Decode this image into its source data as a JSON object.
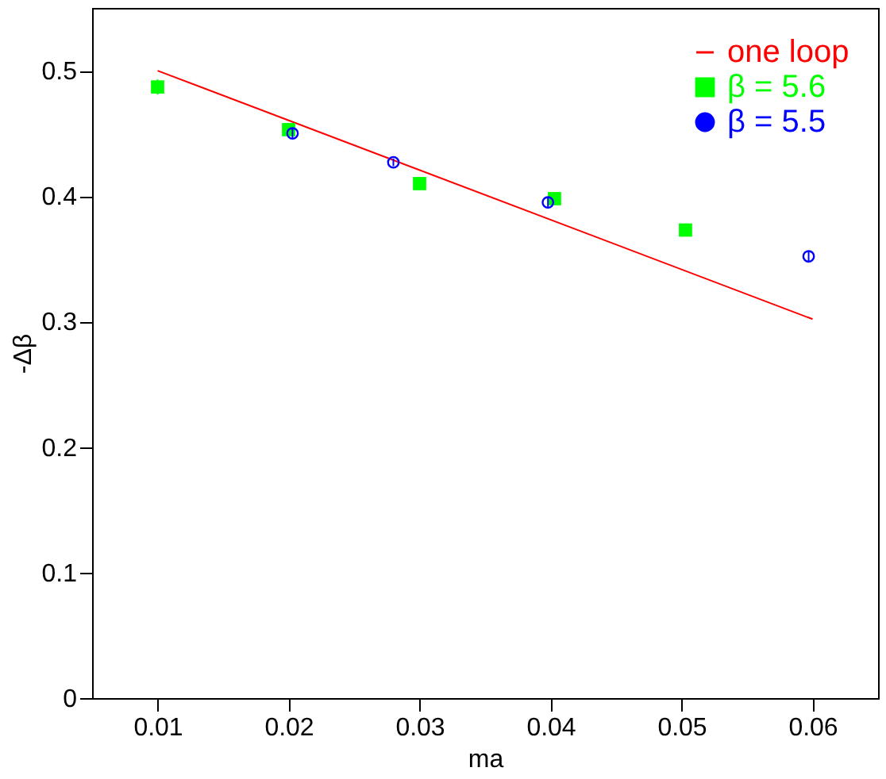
{
  "chart_data": {
    "type": "scatter",
    "xlabel": "ma",
    "ylabel": "-Δβ",
    "xlim": [
      0.005,
      0.065
    ],
    "ylim": [
      0,
      0.55
    ],
    "xticks": [
      0.01,
      0.02,
      0.03,
      0.04,
      0.05,
      0.06
    ],
    "yticks": [
      0,
      0.1,
      0.2,
      0.3,
      0.4,
      0.5
    ],
    "legend": "top right",
    "grid": false,
    "series": [
      {
        "name": "one loop",
        "type": "line",
        "color": "#ff0000",
        "x": [
          0.01,
          0.06
        ],
        "values": [
          0.5,
          0.302
        ]
      },
      {
        "name": "β = 5.6",
        "marker": "square",
        "color": "#00ff00",
        "x": [
          0.01,
          0.02,
          0.03,
          0.0403,
          0.0503
        ],
        "values": [
          0.487,
          0.453,
          0.41,
          0.398,
          0.373
        ],
        "errors": [
          0.006,
          0.004,
          0.003,
          0.004,
          0.003
        ]
      },
      {
        "name": "β = 5.5",
        "marker": "circle",
        "color": "#0000ff",
        "x": [
          0.0203,
          0.028,
          0.0398,
          0.0597
        ],
        "values": [
          0.45,
          0.427,
          0.395,
          0.352
        ],
        "errors": [
          0.004,
          0.003,
          0.004,
          0.004
        ]
      }
    ]
  }
}
